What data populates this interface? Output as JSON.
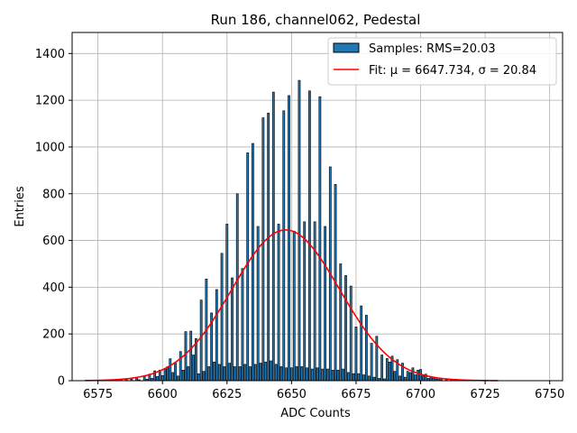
{
  "chart_data": {
    "type": "bar",
    "title": "Run 186, channel062, Pedestal",
    "xlabel": "ADC Counts",
    "ylabel": "Entries",
    "xlim": [
      6565,
      6755
    ],
    "ylim": [
      0,
      1490
    ],
    "xticks": [
      6575,
      6600,
      6625,
      6650,
      6675,
      6700,
      6725,
      6750
    ],
    "yticks": [
      0,
      200,
      400,
      600,
      800,
      1000,
      1200,
      1400
    ],
    "grid": true,
    "legend_position": "top-right",
    "colors": {
      "bars": "#1f77b4",
      "bar_edge": "#000000",
      "fit": "#ff0000"
    },
    "series": [
      {
        "name": "Samples: RMS=20.03",
        "kind": "histogram",
        "bin_width": 1,
        "bins": [
          [
            6582,
            2
          ],
          [
            6584,
            3
          ],
          [
            6586,
            5
          ],
          [
            6588,
            8
          ],
          [
            6590,
            12
          ],
          [
            6591,
            4
          ],
          [
            6593,
            20
          ],
          [
            6594,
            6
          ],
          [
            6595,
            28
          ],
          [
            6596,
            10
          ],
          [
            6597,
            42
          ],
          [
            6598,
            18
          ],
          [
            6599,
            45
          ],
          [
            6600,
            22
          ],
          [
            6601,
            50
          ],
          [
            6602,
            60
          ],
          [
            6603,
            94
          ],
          [
            6604,
            35
          ],
          [
            6605,
            75
          ],
          [
            6606,
            20
          ],
          [
            6607,
            125
          ],
          [
            6608,
            45
          ],
          [
            6609,
            210
          ],
          [
            6610,
            60
          ],
          [
            6611,
            212
          ],
          [
            6612,
            110
          ],
          [
            6613,
            180
          ],
          [
            6614,
            30
          ],
          [
            6615,
            345
          ],
          [
            6616,
            40
          ],
          [
            6617,
            435
          ],
          [
            6618,
            60
          ],
          [
            6619,
            290
          ],
          [
            6620,
            80
          ],
          [
            6621,
            390
          ],
          [
            6622,
            70
          ],
          [
            6623,
            545
          ],
          [
            6624,
            60
          ],
          [
            6625,
            670
          ],
          [
            6626,
            75
          ],
          [
            6627,
            440
          ],
          [
            6628,
            60
          ],
          [
            6629,
            800
          ],
          [
            6630,
            60
          ],
          [
            6631,
            480
          ],
          [
            6632,
            70
          ],
          [
            6633,
            975
          ],
          [
            6634,
            60
          ],
          [
            6635,
            1015
          ],
          [
            6636,
            70
          ],
          [
            6637,
            660
          ],
          [
            6638,
            75
          ],
          [
            6639,
            1125
          ],
          [
            6640,
            80
          ],
          [
            6641,
            1145
          ],
          [
            6642,
            85
          ],
          [
            6643,
            1235
          ],
          [
            6644,
            70
          ],
          [
            6645,
            670
          ],
          [
            6646,
            60
          ],
          [
            6647,
            1155
          ],
          [
            6648,
            55
          ],
          [
            6649,
            1220
          ],
          [
            6650,
            55
          ],
          [
            6651,
            640
          ],
          [
            6652,
            60
          ],
          [
            6653,
            1285
          ],
          [
            6654,
            60
          ],
          [
            6655,
            680
          ],
          [
            6656,
            55
          ],
          [
            6657,
            1240
          ],
          [
            6658,
            50
          ],
          [
            6659,
            680
          ],
          [
            6660,
            55
          ],
          [
            6661,
            1215
          ],
          [
            6662,
            50
          ],
          [
            6663,
            660
          ],
          [
            6664,
            50
          ],
          [
            6665,
            915
          ],
          [
            6666,
            45
          ],
          [
            6667,
            840
          ],
          [
            6668,
            45
          ],
          [
            6669,
            500
          ],
          [
            6670,
            50
          ],
          [
            6671,
            450
          ],
          [
            6672,
            35
          ],
          [
            6673,
            405
          ],
          [
            6674,
            30
          ],
          [
            6675,
            230
          ],
          [
            6676,
            30
          ],
          [
            6677,
            320
          ],
          [
            6678,
            25
          ],
          [
            6679,
            280
          ],
          [
            6680,
            20
          ],
          [
            6681,
            160
          ],
          [
            6682,
            15
          ],
          [
            6683,
            190
          ],
          [
            6684,
            10
          ],
          [
            6685,
            110
          ],
          [
            6686,
            8
          ],
          [
            6687,
            95
          ],
          [
            6688,
            80
          ],
          [
            6689,
            105
          ],
          [
            6690,
            40
          ],
          [
            6691,
            90
          ],
          [
            6692,
            20
          ],
          [
            6693,
            75
          ],
          [
            6694,
            15
          ],
          [
            6695,
            40
          ],
          [
            6696,
            35
          ],
          [
            6697,
            55
          ],
          [
            6698,
            25
          ],
          [
            6699,
            45
          ],
          [
            6700,
            48
          ],
          [
            6701,
            20
          ],
          [
            6702,
            28
          ],
          [
            6703,
            10
          ],
          [
            6704,
            15
          ],
          [
            6705,
            12
          ],
          [
            6706,
            8
          ],
          [
            6707,
            6
          ],
          [
            6708,
            5
          ],
          [
            6710,
            4
          ],
          [
            6712,
            3
          ],
          [
            6714,
            2
          ]
        ]
      },
      {
        "name": "Fit: μ = 6647.734, σ = 20.84",
        "kind": "gaussian",
        "amplitude": 645,
        "mean": 6647.734,
        "sigma": 20.84,
        "x_range": [
          6570,
          6730
        ]
      }
    ]
  }
}
